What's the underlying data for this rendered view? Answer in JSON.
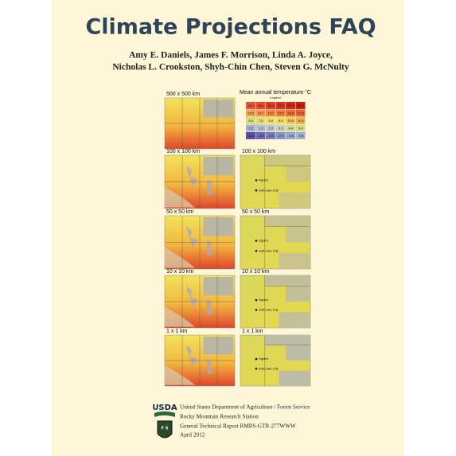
{
  "header": {
    "title": "Climate Projections FAQ",
    "authors": [
      "Amy E. Daniels, James F. Morrison, Linda A. Joyce,",
      "Nicholas L. Crookston, Shyh-Chin Chen, Steven G. McNulty"
    ]
  },
  "legend": {
    "title": "Mean annual temperature °C",
    "subtitle": "Legend",
    "rows": [
      [
        "18.4",
        "19.4",
        "20.4",
        "21.3",
        "22.3",
        "23.3"
      ],
      [
        "12.6",
        "13.7",
        "14.7",
        "15.7",
        "16.8",
        "17.8"
      ],
      [
        "6.4",
        "7.5",
        "8.5",
        "9.5",
        "10.5",
        "11.6"
      ],
      [
        "0.2",
        "1.3",
        "2.3",
        "3.3",
        "4.4",
        "5.4"
      ],
      [
        "-6.0",
        "-4.9",
        "-3.9",
        "-2.9",
        "-1.8",
        "-0.8"
      ]
    ]
  },
  "panels": {
    "left": [
      "500 x 500 km",
      "100 x 100 km",
      "50 x 50 km",
      "10 x 10 km",
      "1 x 1 km"
    ],
    "right": [
      "100 x 100 km",
      "50 x 50 km",
      "10 x 10 km",
      "1 x 1 km"
    ],
    "cities": [
      "Ogden",
      "Salt Lake City"
    ]
  },
  "footer": {
    "logo": "USDA",
    "lines": [
      "United States Department of Agriculture / Forest Service",
      "Rocky Mountain Research Station",
      "General Technical Report RMRS-GTR-277WWW",
      "April 2012"
    ]
  }
}
